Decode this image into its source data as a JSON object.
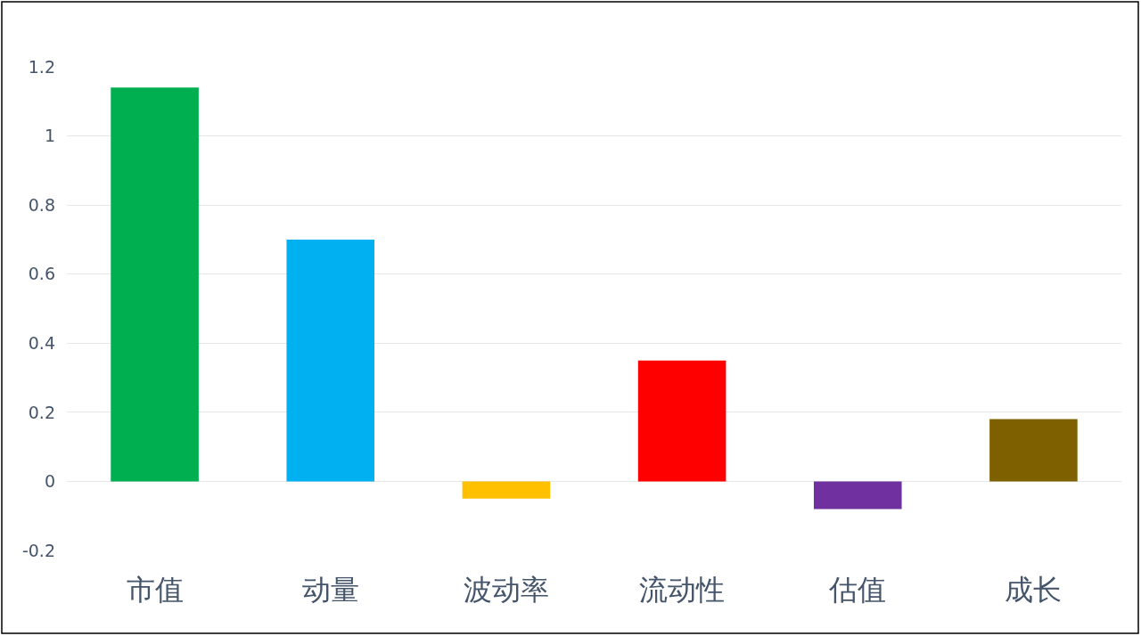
{
  "chart_data": {
    "type": "bar",
    "categories": [
      "市值",
      "动量",
      "波动率",
      "流动性",
      "估值",
      "成长"
    ],
    "values": [
      1.14,
      0.7,
      -0.05,
      0.35,
      -0.08,
      0.18
    ],
    "colors": [
      "#00b050",
      "#00b0f0",
      "#ffc000",
      "#ff0000",
      "#7030a0",
      "#7f6000"
    ],
    "ylim": [
      -0.2,
      1.2
    ],
    "yticks": [
      -0.2,
      0,
      0.2,
      0.4,
      0.6,
      0.8,
      1,
      1.2
    ],
    "grid": "y"
  }
}
